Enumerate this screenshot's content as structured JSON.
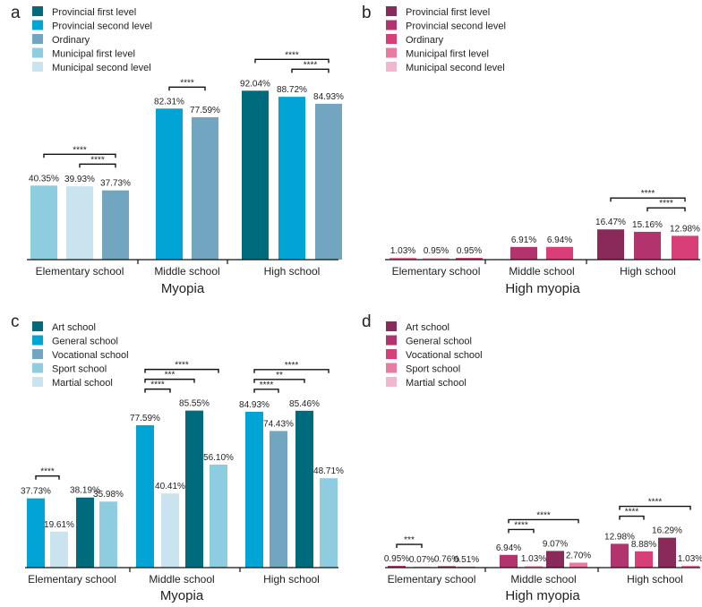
{
  "figure": {
    "palettes": {
      "teal": [
        "#006b7d",
        "#00a5d6",
        "#72a5bf",
        "#8ecde0",
        "#c9e4ef"
      ],
      "magenta": [
        "#8a2a5a",
        "#b2346f",
        "#d83e78",
        "#ea7aa4",
        "#f3b7cd"
      ]
    }
  },
  "chart_data": [
    {
      "panel_label": "a",
      "type": "bar",
      "palette": "teal",
      "title": "Myopia",
      "ylim": [
        0,
        100
      ],
      "legend": [
        "Provincial first level",
        "Provincial second level",
        "Ordinary",
        "Municipal first level",
        "Municipal second level"
      ],
      "groups": [
        {
          "label": "Elementary school",
          "bars": [
            {
              "value": 40.35,
              "label": "40.35%",
              "color_index": 3
            },
            {
              "value": 39.93,
              "label": "39.93%",
              "color_index": 4
            },
            {
              "value": 37.73,
              "label": "37.73%",
              "color_index": 2
            }
          ],
          "sig": [
            {
              "from": 0,
              "to": 2,
              "label": "****",
              "level": 1
            },
            {
              "from": 1,
              "to": 2,
              "label": "****",
              "level": 0
            }
          ]
        },
        {
          "label": "Middle school",
          "bars": [
            {
              "value": 82.31,
              "label": "82.31%",
              "color_index": 1
            },
            {
              "value": 77.59,
              "label": "77.59%",
              "color_index": 2
            }
          ],
          "sig": [
            {
              "from": 0,
              "to": 1,
              "label": "****",
              "level": 0
            }
          ]
        },
        {
          "label": "High school",
          "bars": [
            {
              "value": 92.04,
              "label": "92.04%",
              "color_index": 0
            },
            {
              "value": 88.72,
              "label": "88.72%",
              "color_index": 1
            },
            {
              "value": 84.93,
              "label": "84.93%",
              "color_index": 2
            }
          ],
          "sig": [
            {
              "from": 0,
              "to": 2,
              "label": "****",
              "level": 1
            },
            {
              "from": 1,
              "to": 2,
              "label": "****",
              "level": 0
            }
          ]
        }
      ]
    },
    {
      "panel_label": "b",
      "type": "bar",
      "palette": "magenta",
      "title": "High myopia",
      "ylim": [
        0,
        100
      ],
      "legend": [
        "Provincial first level",
        "Provincial second level",
        "Ordinary",
        "Municipal first level",
        "Municipal second level"
      ],
      "groups": [
        {
          "label": "Elementary school",
          "bars": [
            {
              "value": 1.03,
              "label": "1.03%",
              "color_index": 3
            },
            {
              "value": 0.95,
              "label": "0.95%",
              "color_index": 4
            },
            {
              "value": 0.95,
              "label": "0.95%",
              "color_index": 2
            }
          ],
          "sig": []
        },
        {
          "label": "Middle school",
          "bars": [
            {
              "value": 6.91,
              "label": "6.91%",
              "color_index": 1
            },
            {
              "value": 6.94,
              "label": "6.94%",
              "color_index": 2
            }
          ],
          "sig": []
        },
        {
          "label": "High school",
          "bars": [
            {
              "value": 16.47,
              "label": "16.47%",
              "color_index": 0
            },
            {
              "value": 15.16,
              "label": "15.16%",
              "color_index": 1
            },
            {
              "value": 12.98,
              "label": "12.98%",
              "color_index": 2
            }
          ],
          "sig": [
            {
              "from": 0,
              "to": 2,
              "label": "****",
              "level": 1
            },
            {
              "from": 1,
              "to": 2,
              "label": "****",
              "level": 0
            }
          ]
        }
      ]
    },
    {
      "panel_label": "c",
      "type": "bar",
      "palette": "teal",
      "title": "Myopia",
      "ylim": [
        0,
        100
      ],
      "legend": [
        "Art school",
        "General school",
        "Vocational school",
        "Sport school",
        "Martial school"
      ],
      "groups": [
        {
          "label": "Elementary school",
          "bars": [
            {
              "value": 37.73,
              "label": "37.73%",
              "color_index": 1
            },
            {
              "value": 19.61,
              "label": "19.61%",
              "color_index": 4
            },
            {
              "value": 38.19,
              "label": "38.19%",
              "color_index": 0
            },
            {
              "value": 35.98,
              "label": "35.98%",
              "color_index": 3
            }
          ],
          "sig": [
            {
              "from": 0,
              "to": 1,
              "label": "****",
              "level": 0
            }
          ]
        },
        {
          "label": "Middle school",
          "bars": [
            {
              "value": 77.59,
              "label": "77.59%",
              "color_index": 1
            },
            {
              "value": 40.41,
              "label": "40.41%",
              "color_index": 4
            },
            {
              "value": 85.55,
              "label": "85.55%",
              "color_index": 0
            },
            {
              "value": 56.1,
              "label": "56.10%",
              "color_index": 3
            }
          ],
          "sig": [
            {
              "from": 0,
              "to": 1,
              "label": "****",
              "level": 0
            },
            {
              "from": 0,
              "to": 2,
              "label": "***",
              "level": 1
            },
            {
              "from": 0,
              "to": 3,
              "label": "****",
              "level": 2
            }
          ]
        },
        {
          "label": "High school",
          "bars": [
            {
              "value": 84.93,
              "label": "84.93%",
              "color_index": 1
            },
            {
              "value": 74.43,
              "label": "74.43%",
              "color_index": 2
            },
            {
              "value": 85.46,
              "label": "85.46%",
              "color_index": 0
            },
            {
              "value": 48.71,
              "label": "48.71%",
              "color_index": 3
            }
          ],
          "sig": [
            {
              "from": 0,
              "to": 1,
              "label": "****",
              "level": 0
            },
            {
              "from": 0,
              "to": 2,
              "label": "**",
              "level": 1
            },
            {
              "from": 0,
              "to": 3,
              "label": "****",
              "level": 2
            }
          ]
        }
      ]
    },
    {
      "panel_label": "d",
      "type": "bar",
      "palette": "magenta",
      "title": "High myopia",
      "ylim": [
        0,
        100
      ],
      "legend": [
        "Art school",
        "General school",
        "Vocational school",
        "Sport school",
        "Martial school"
      ],
      "groups": [
        {
          "label": "Elementary school",
          "bars": [
            {
              "value": 0.95,
              "label": "0.95%",
              "color_index": 1
            },
            {
              "value": 0.07,
              "label": "0.07%",
              "color_index": 4
            },
            {
              "value": 0.76,
              "label": "0.76%",
              "color_index": 0
            },
            {
              "value": 0.51,
              "label": "0.51%",
              "color_index": 3
            }
          ],
          "sig": [
            {
              "from": 0,
              "to": 1,
              "label": "***",
              "level": 0
            }
          ]
        },
        {
          "label": "Middle school",
          "bars": [
            {
              "value": 6.94,
              "label": "6.94%",
              "color_index": 1
            },
            {
              "value": 1.03,
              "label": "1.03%",
              "color_index": 4
            },
            {
              "value": 9.07,
              "label": "9.07%",
              "color_index": 0
            },
            {
              "value": 2.7,
              "label": "2.70%",
              "color_index": 3
            }
          ],
          "sig": [
            {
              "from": 0,
              "to": 1,
              "label": "****",
              "level": 0
            },
            {
              "from": 0,
              "to": 3,
              "label": "****",
              "level": 1
            }
          ]
        },
        {
          "label": "High school",
          "bars": [
            {
              "value": 12.98,
              "label": "12.98%",
              "color_index": 1
            },
            {
              "value": 8.88,
              "label": "8.88%",
              "color_index": 2
            },
            {
              "value": 16.29,
              "label": "16.29%",
              "color_index": 0
            },
            {
              "value": 1.03,
              "label": "1.03%",
              "color_index": 3
            }
          ],
          "sig": [
            {
              "from": 0,
              "to": 1,
              "label": "****",
              "level": 0
            },
            {
              "from": 0,
              "to": 3,
              "label": "****",
              "level": 1
            }
          ]
        }
      ]
    }
  ]
}
